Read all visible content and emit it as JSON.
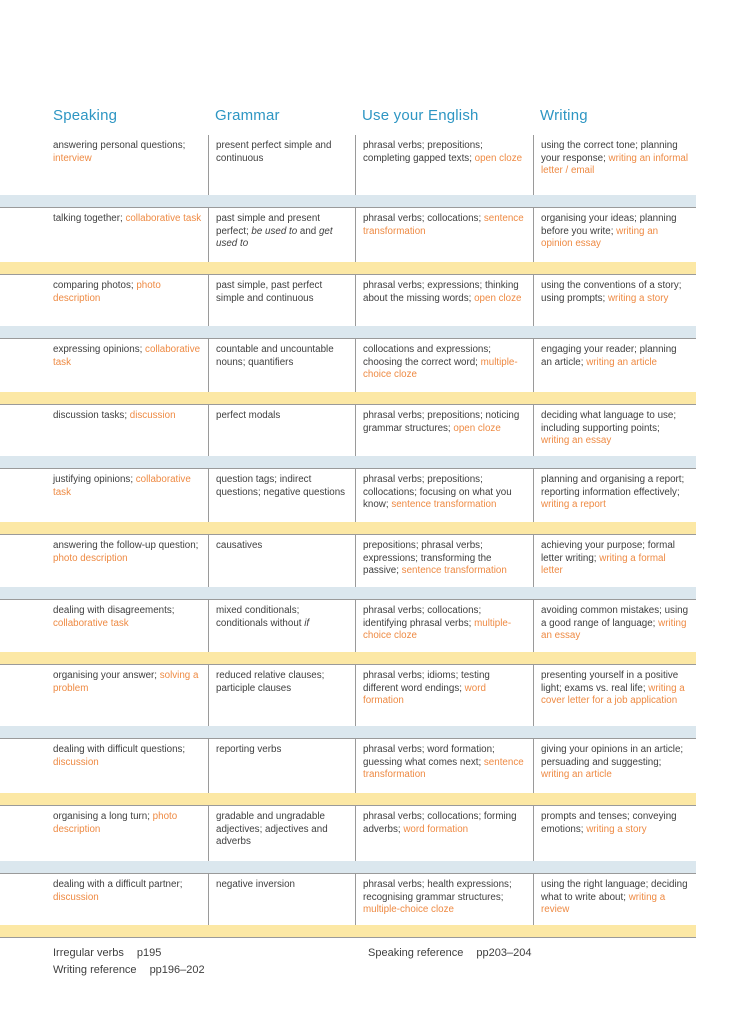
{
  "colors": {
    "heading": "#2e96c3",
    "highlight": "#ee8a43",
    "body_text": "#3e3e3e",
    "band_blue": "#dbe7ee",
    "band_yellow": "#fce8a5",
    "rule": "#9a9a9a"
  },
  "table": {
    "columns": [
      {
        "label": "Speaking"
      },
      {
        "label": "Grammar"
      },
      {
        "label": "Use your English"
      },
      {
        "label": "Writing"
      }
    ],
    "rows": [
      {
        "band_after": "blue",
        "speaking": [
          {
            "t": "answering personal questions; ",
            "s": "n"
          },
          {
            "t": "interview",
            "s": "o"
          }
        ],
        "grammar": [
          {
            "t": "present perfect simple and continuous",
            "s": "n"
          }
        ],
        "use_your_english": [
          {
            "t": "phrasal verbs; prepositions; completing gapped texts; ",
            "s": "n"
          },
          {
            "t": "open cloze",
            "s": "o"
          }
        ],
        "writing": [
          {
            "t": "using the correct tone; planning your response; ",
            "s": "n"
          },
          {
            "t": "writing an informal letter / email",
            "s": "o"
          }
        ]
      },
      {
        "band_after": "yellow",
        "speaking": [
          {
            "t": "talking together; ",
            "s": "n"
          },
          {
            "t": "collaborative task",
            "s": "o"
          }
        ],
        "grammar": [
          {
            "t": "past simple and present perfect; ",
            "s": "n"
          },
          {
            "t": "be used to",
            "s": "i"
          },
          {
            "t": " and ",
            "s": "n"
          },
          {
            "t": "get used to",
            "s": "i"
          }
        ],
        "use_your_english": [
          {
            "t": "phrasal verbs; collocations; ",
            "s": "n"
          },
          {
            "t": "sentence transformation",
            "s": "o"
          }
        ],
        "writing": [
          {
            "t": "organising your ideas; planning before you write; ",
            "s": "n"
          },
          {
            "t": "writing an opinion essay",
            "s": "o"
          }
        ]
      },
      {
        "band_after": "blue",
        "speaking": [
          {
            "t": "comparing photos; ",
            "s": "n"
          },
          {
            "t": "photo description",
            "s": "o"
          }
        ],
        "grammar": [
          {
            "t": "past simple, past perfect simple and continuous",
            "s": "n"
          }
        ],
        "use_your_english": [
          {
            "t": "phrasal verbs; expressions; thinking about the missing words; ",
            "s": "n"
          },
          {
            "t": "open cloze",
            "s": "o"
          }
        ],
        "writing": [
          {
            "t": "using the conventions of a story; using prompts; ",
            "s": "n"
          },
          {
            "t": "writing a story",
            "s": "o"
          }
        ]
      },
      {
        "band_after": "yellow",
        "speaking": [
          {
            "t": "expressing opinions; ",
            "s": "n"
          },
          {
            "t": "collaborative task",
            "s": "o"
          }
        ],
        "grammar": [
          {
            "t": "countable and uncountable nouns; quantifiers",
            "s": "n"
          }
        ],
        "use_your_english": [
          {
            "t": "collocations and expressions; choosing the correct word; ",
            "s": "n"
          },
          {
            "t": "multiple-choice cloze",
            "s": "o"
          }
        ],
        "writing": [
          {
            "t": "engaging your reader; planning an article; ",
            "s": "n"
          },
          {
            "t": "writing an article",
            "s": "o"
          }
        ]
      },
      {
        "band_after": "blue",
        "speaking": [
          {
            "t": "discussion tasks; ",
            "s": "n"
          },
          {
            "t": "discussion",
            "s": "o"
          }
        ],
        "grammar": [
          {
            "t": "perfect modals",
            "s": "n"
          }
        ],
        "use_your_english": [
          {
            "t": "phrasal verbs; prepositions; noticing grammar structures; ",
            "s": "n"
          },
          {
            "t": "open cloze",
            "s": "o"
          }
        ],
        "writing": [
          {
            "t": "deciding what language to use; including supporting points; ",
            "s": "n"
          },
          {
            "t": "writing an essay",
            "s": "o"
          }
        ]
      },
      {
        "band_after": "yellow",
        "speaking": [
          {
            "t": "justifying opinions; ",
            "s": "n"
          },
          {
            "t": "collaborative task",
            "s": "o"
          }
        ],
        "grammar": [
          {
            "t": "question tags; indirect questions; negative questions",
            "s": "n"
          }
        ],
        "use_your_english": [
          {
            "t": "phrasal verbs; prepositions; collocations; focusing on what you know; ",
            "s": "n"
          },
          {
            "t": "sentence transformation",
            "s": "o"
          }
        ],
        "writing": [
          {
            "t": "planning and organising a report; reporting information effectively; ",
            "s": "n"
          },
          {
            "t": "writing a report",
            "s": "o"
          }
        ]
      },
      {
        "band_after": "blue",
        "speaking": [
          {
            "t": "answering the follow-up question; ",
            "s": "n"
          },
          {
            "t": "photo description",
            "s": "o"
          }
        ],
        "grammar": [
          {
            "t": "causatives",
            "s": "n"
          }
        ],
        "use_your_english": [
          {
            "t": "prepositions; phrasal verbs; expressions; transforming the passive; ",
            "s": "n"
          },
          {
            "t": "sentence transformation",
            "s": "o"
          }
        ],
        "writing": [
          {
            "t": "achieving your purpose; formal letter writing; ",
            "s": "n"
          },
          {
            "t": "writing a formal letter",
            "s": "o"
          }
        ]
      },
      {
        "band_after": "yellow",
        "speaking": [
          {
            "t": "dealing with disagreements; ",
            "s": "n"
          },
          {
            "t": "collaborative task",
            "s": "o"
          }
        ],
        "grammar": [
          {
            "t": "mixed conditionals; conditionals without ",
            "s": "n"
          },
          {
            "t": "if",
            "s": "i"
          }
        ],
        "use_your_english": [
          {
            "t": "phrasal verbs; collocations; identifying phrasal verbs; ",
            "s": "n"
          },
          {
            "t": "multiple-choice cloze",
            "s": "o"
          }
        ],
        "writing": [
          {
            "t": "avoiding common mistakes; using a good range of language; ",
            "s": "n"
          },
          {
            "t": "writing an essay",
            "s": "o"
          }
        ]
      },
      {
        "band_after": "blue",
        "speaking": [
          {
            "t": "organising your answer; ",
            "s": "n"
          },
          {
            "t": "solving a problem",
            "s": "o"
          }
        ],
        "grammar": [
          {
            "t": "reduced relative clauses; participle clauses",
            "s": "n"
          }
        ],
        "use_your_english": [
          {
            "t": "phrasal verbs; idioms; testing different word endings; ",
            "s": "n"
          },
          {
            "t": "word formation",
            "s": "o"
          }
        ],
        "writing": [
          {
            "t": "presenting yourself in a positive light; exams vs. real life; ",
            "s": "n"
          },
          {
            "t": "writing a cover letter for a job application",
            "s": "o"
          }
        ]
      },
      {
        "band_after": "yellow",
        "speaking": [
          {
            "t": "dealing with difficult questions; ",
            "s": "n"
          },
          {
            "t": "discussion",
            "s": "o"
          }
        ],
        "grammar": [
          {
            "t": "reporting verbs",
            "s": "n"
          }
        ],
        "use_your_english": [
          {
            "t": "phrasal verbs; word formation; guessing what comes next; ",
            "s": "n"
          },
          {
            "t": "sentence transformation",
            "s": "o"
          }
        ],
        "writing": [
          {
            "t": "giving your opinions in an article; persuading and suggesting; ",
            "s": "n"
          },
          {
            "t": "writing an article",
            "s": "o"
          }
        ]
      },
      {
        "band_after": "blue",
        "speaking": [
          {
            "t": "organising a long turn; ",
            "s": "n"
          },
          {
            "t": "photo description",
            "s": "o"
          }
        ],
        "grammar": [
          {
            "t": "gradable and ungradable adjectives; adjectives and adverbs",
            "s": "n"
          }
        ],
        "use_your_english": [
          {
            "t": "phrasal verbs; collocations; forming adverbs; ",
            "s": "n"
          },
          {
            "t": "word formation",
            "s": "o"
          }
        ],
        "writing": [
          {
            "t": "prompts and tenses; conveying emotions; ",
            "s": "n"
          },
          {
            "t": "writing a story",
            "s": "o"
          }
        ]
      },
      {
        "band_after": "yellow",
        "speaking": [
          {
            "t": "dealing with a difficult partner; ",
            "s": "n"
          },
          {
            "t": "discussion",
            "s": "o"
          }
        ],
        "grammar": [
          {
            "t": "negative inversion",
            "s": "n"
          }
        ],
        "use_your_english": [
          {
            "t": "phrasal verbs; health expressions; recognising grammar structures; ",
            "s": "n"
          },
          {
            "t": "multiple-choice cloze",
            "s": "o"
          }
        ],
        "writing": [
          {
            "t": "using the right language; deciding what to write about; ",
            "s": "n"
          },
          {
            "t": "writing a review",
            "s": "o"
          }
        ]
      }
    ]
  },
  "footer": {
    "items": [
      {
        "label": "Irregular verbs",
        "page": "p195"
      },
      {
        "label": "Writing reference",
        "page": "pp196–202"
      },
      {
        "label": "Speaking reference",
        "page": "pp203–204"
      }
    ]
  }
}
